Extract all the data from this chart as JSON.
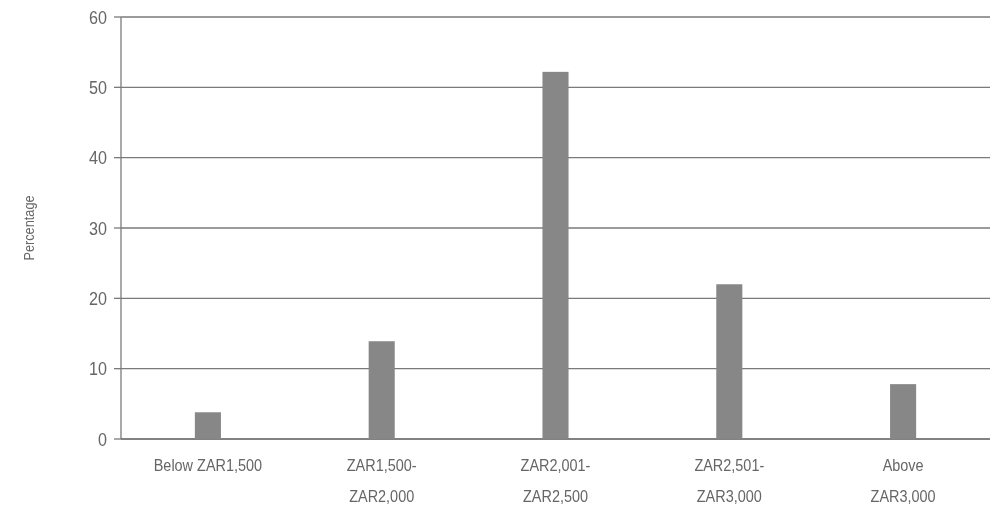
{
  "chart_data": {
    "type": "bar",
    "ylabel": "Percentage",
    "categories": [
      "Below ZAR1,500",
      "ZAR1,500-\nZAR2,000",
      "ZAR2,001-\nZAR2,500",
      "ZAR2,501-\nZAR3,000",
      "Above\nZAR3,000"
    ],
    "values": [
      3.8,
      13.9,
      52.2,
      22,
      7.8
    ],
    "color": "#878787",
    "ylim": [
      0,
      60
    ],
    "yticks": [
      0,
      10,
      20,
      30,
      40,
      50,
      60
    ],
    "grid": "y"
  }
}
